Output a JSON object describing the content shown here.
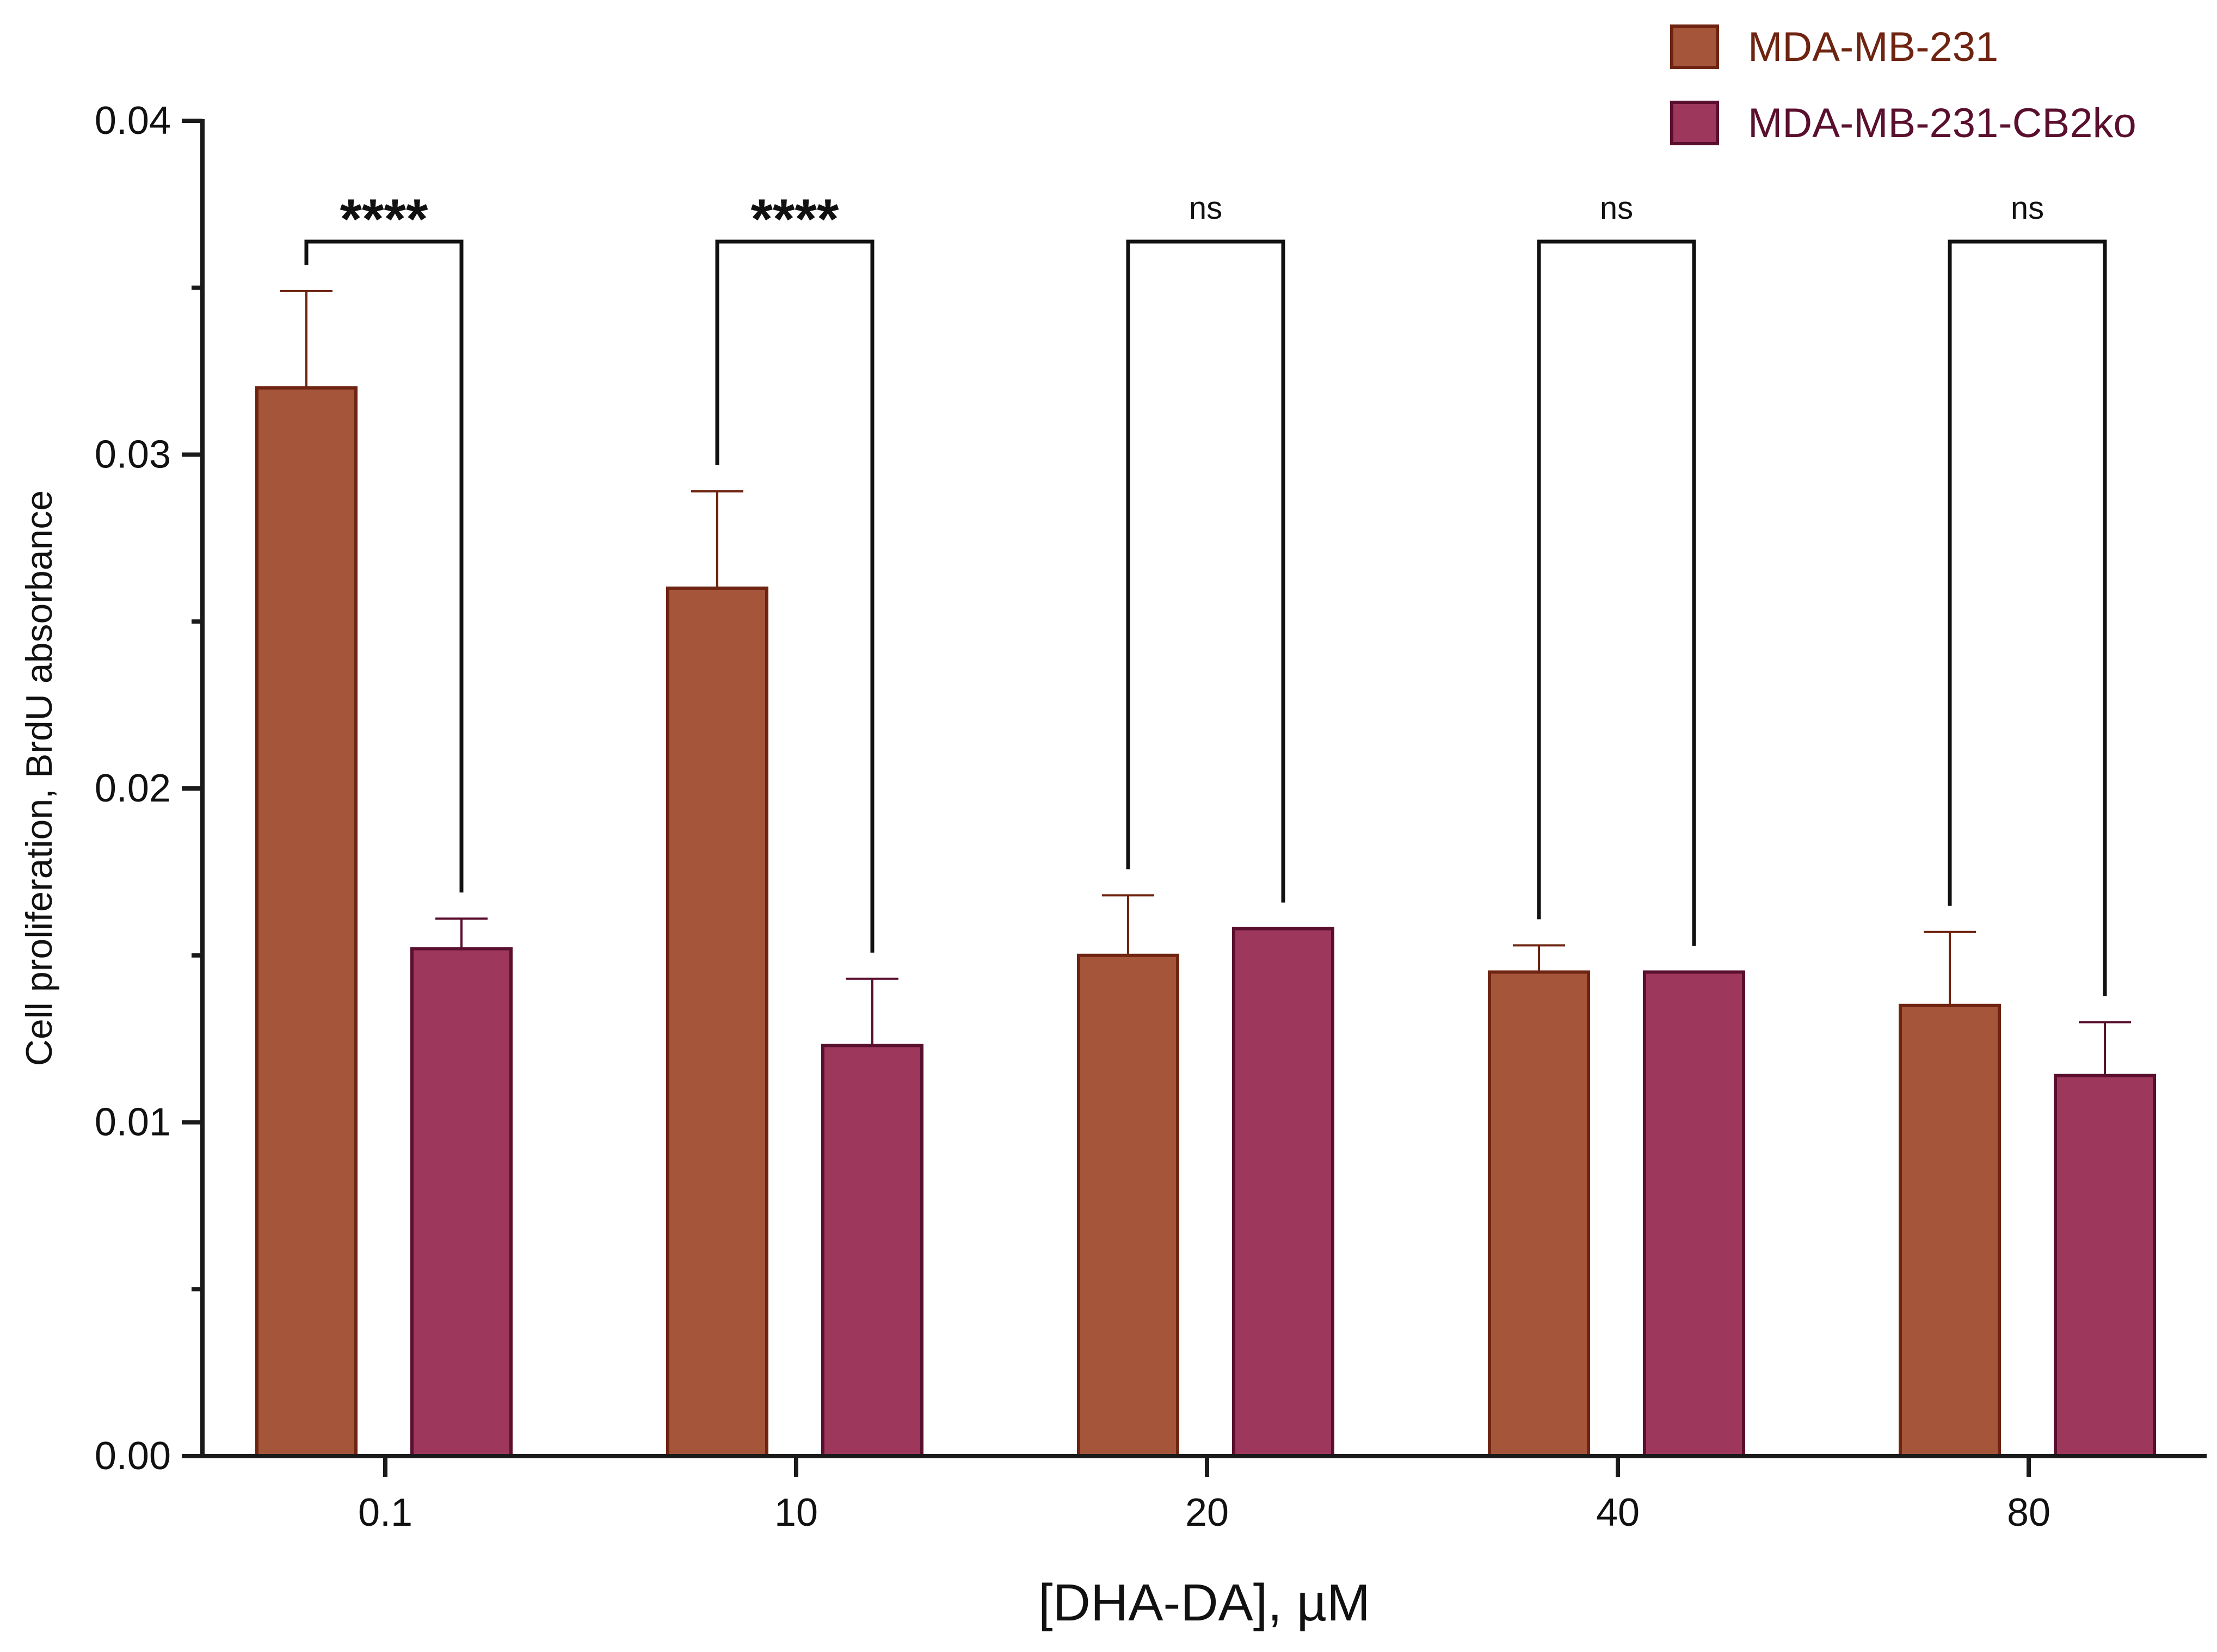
{
  "chart_data": {
    "type": "bar",
    "xlabel": "[DHA-DA], µM",
    "ylabel": "Cell proliferation, BrdU absorbance",
    "ylim": [
      0,
      0.04
    ],
    "y_ticks": [
      "0.00",
      "0.01",
      "0.02",
      "0.03",
      "0.04"
    ],
    "y_minor_ticks": [
      0.005,
      0.015,
      0.025,
      0.035
    ],
    "grid": false,
    "legend_position": "top-right",
    "categories": [
      "0.1",
      "10",
      "20",
      "40",
      "80"
    ],
    "series": [
      {
        "name": "MDA-MB-231",
        "color": "#A5553A",
        "edge_color": "#6E2410",
        "label_color": "#6E2410",
        "values": [
          0.032,
          0.026,
          0.015,
          0.0145,
          0.0135
        ],
        "error": [
          0.0029,
          0.0029,
          0.0018,
          0.0008,
          0.0022
        ]
      },
      {
        "name": "MDA-MB-231-CB2ko",
        "color": "#9E375C",
        "edge_color": "#5A0F2E",
        "label_color": "#5A0F2E",
        "values": [
          0.0152,
          0.0123,
          0.0158,
          0.0145,
          0.0114
        ],
        "error": [
          0.0009,
          0.002,
          0.0,
          0.0,
          0.0016
        ]
      }
    ],
    "significance": [
      {
        "category": "0.1",
        "label": "****"
      },
      {
        "category": "10",
        "label": "****"
      },
      {
        "category": "20",
        "label": "ns"
      },
      {
        "category": "40",
        "label": "ns"
      },
      {
        "category": "80",
        "label": "ns"
      }
    ]
  }
}
